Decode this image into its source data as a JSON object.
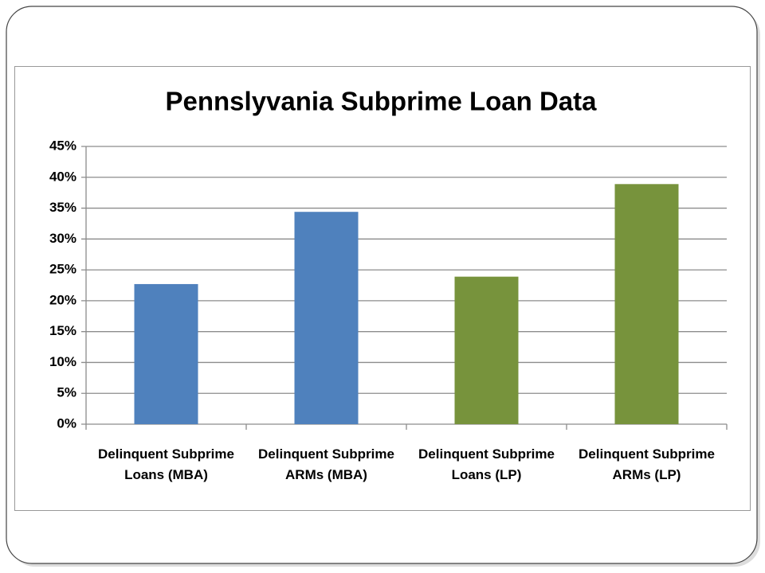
{
  "chart_data": {
    "type": "bar",
    "title": "Pennslyvania Subprime Loan Data",
    "categories": [
      "Delinquent Subprime Loans (MBA)",
      "Delinquent Subprime ARMs (MBA)",
      "Delinquent Subprime Loans (LP)",
      "Delinquent Subprime ARMs (LP)"
    ],
    "values": [
      22.7,
      34.4,
      23.9,
      38.9
    ],
    "colors": [
      "#4f81bd",
      "#4f81bd",
      "#77933c",
      "#77933c"
    ],
    "ylim": [
      0,
      45
    ],
    "yticks": [
      {
        "value": 0,
        "label": "0%"
      },
      {
        "value": 5,
        "label": "5%"
      },
      {
        "value": 10,
        "label": "10%"
      },
      {
        "value": 15,
        "label": "15%"
      },
      {
        "value": 20,
        "label": "20%"
      },
      {
        "value": 25,
        "label": "25%"
      },
      {
        "value": 30,
        "label": "30%"
      },
      {
        "value": 35,
        "label": "35%"
      },
      {
        "value": 40,
        "label": "40%"
      },
      {
        "value": 45,
        "label": "45%"
      }
    ],
    "grid": true
  }
}
